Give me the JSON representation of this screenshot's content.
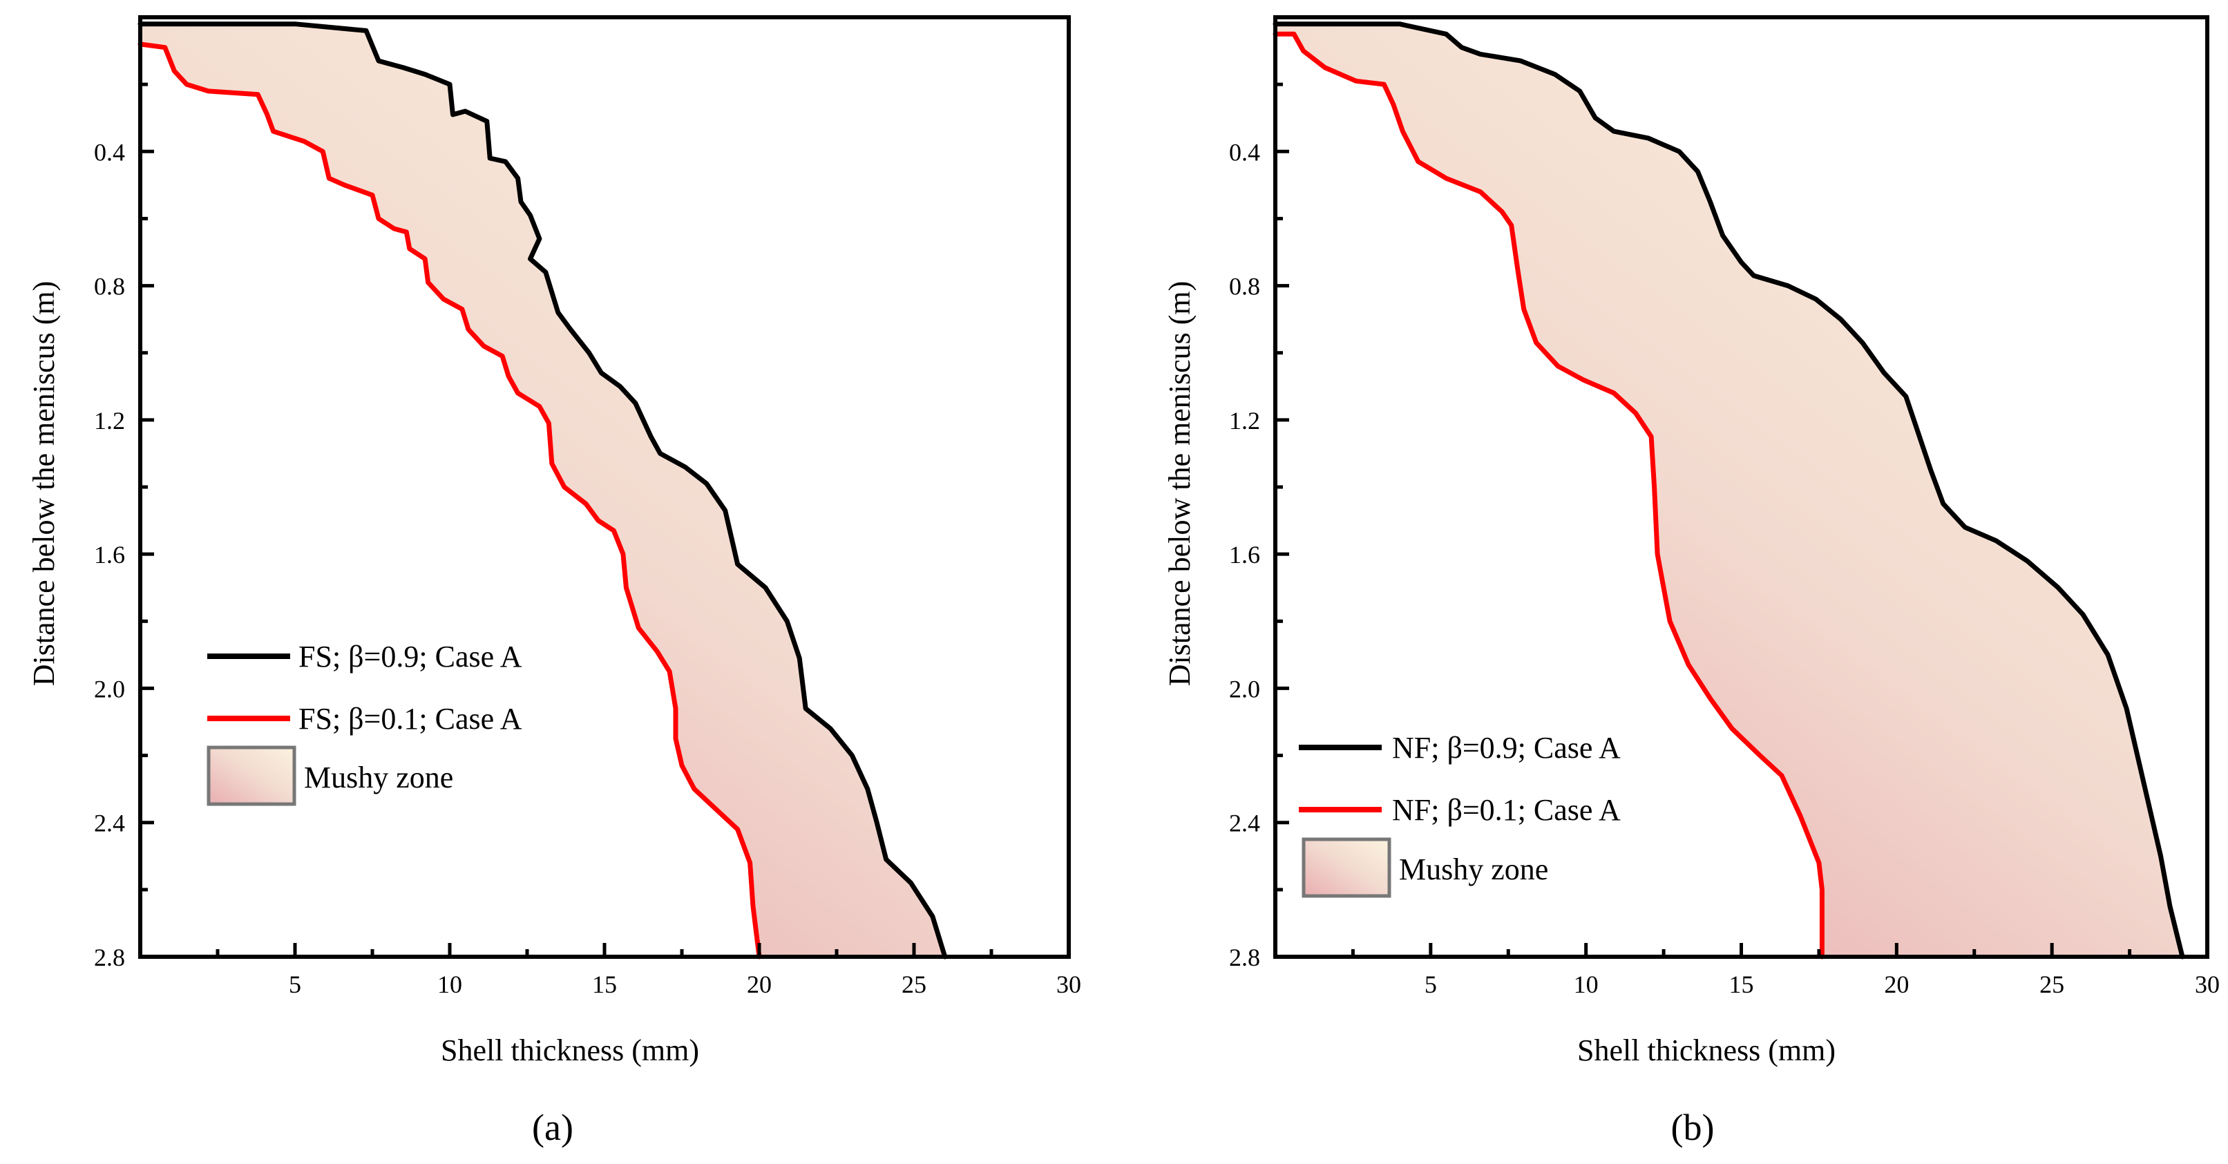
{
  "chart_data": [
    {
      "type": "area",
      "panel_label": "(a)",
      "xlabel": "Shell thickness (mm)",
      "ylabel": "Distance below the meniscus (m)",
      "xlim": [
        0,
        30
      ],
      "ylim": [
        0,
        2.8
      ],
      "y_inverted": true,
      "xticks": [
        5,
        10,
        15,
        20,
        25,
        30
      ],
      "yticks": [
        0.4,
        0.8,
        1.2,
        1.6,
        2.0,
        2.4,
        2.8
      ],
      "fill_gradient": [
        "#fbf3df",
        "#f2d9cf",
        "#e9aeb0"
      ],
      "legend_position": "lower-left",
      "series": [
        {
          "name": "FS; β=0.9; Case A",
          "color": "#000000",
          "points": [
            [
              0,
              0.02
            ],
            [
              5,
              0.02
            ],
            [
              7.3,
              0.04
            ],
            [
              7.7,
              0.13
            ],
            [
              8.5,
              0.15
            ],
            [
              9.2,
              0.17
            ],
            [
              10,
              0.2
            ],
            [
              10.1,
              0.29
            ],
            [
              10.5,
              0.28
            ],
            [
              11.2,
              0.31
            ],
            [
              11.3,
              0.42
            ],
            [
              11.8,
              0.43
            ],
            [
              12.2,
              0.48
            ],
            [
              12.3,
              0.55
            ],
            [
              12.6,
              0.59
            ],
            [
              12.9,
              0.66
            ],
            [
              12.6,
              0.72
            ],
            [
              13.1,
              0.76
            ],
            [
              13.5,
              0.88
            ],
            [
              13.9,
              0.93
            ],
            [
              14.5,
              1.0
            ],
            [
              14.9,
              1.06
            ],
            [
              15.5,
              1.1
            ],
            [
              16.0,
              1.15
            ],
            [
              16.5,
              1.25
            ],
            [
              16.8,
              1.3
            ],
            [
              17.6,
              1.34
            ],
            [
              18.3,
              1.39
            ],
            [
              18.9,
              1.47
            ],
            [
              19.1,
              1.55
            ],
            [
              19.3,
              1.63
            ],
            [
              20.2,
              1.7
            ],
            [
              20.9,
              1.8
            ],
            [
              21.3,
              1.91
            ],
            [
              21.5,
              2.06
            ],
            [
              22.3,
              2.12
            ],
            [
              23.0,
              2.2
            ],
            [
              23.5,
              2.3
            ],
            [
              23.8,
              2.4
            ],
            [
              24.1,
              2.51
            ],
            [
              24.9,
              2.58
            ],
            [
              25.6,
              2.68
            ],
            [
              26.0,
              2.8
            ]
          ]
        },
        {
          "name": "FS; β=0.1; Case A",
          "color": "#ff0000",
          "points": [
            [
              0,
              0.08
            ],
            [
              0.8,
              0.09
            ],
            [
              1.1,
              0.16
            ],
            [
              1.5,
              0.2
            ],
            [
              2.2,
              0.22
            ],
            [
              3.8,
              0.23
            ],
            [
              4.1,
              0.29
            ],
            [
              4.3,
              0.34
            ],
            [
              5.3,
              0.37
            ],
            [
              5.9,
              0.4
            ],
            [
              6.1,
              0.48
            ],
            [
              6.6,
              0.5
            ],
            [
              7.5,
              0.53
            ],
            [
              7.7,
              0.6
            ],
            [
              8.2,
              0.63
            ],
            [
              8.6,
              0.64
            ],
            [
              8.7,
              0.69
            ],
            [
              9.2,
              0.72
            ],
            [
              9.3,
              0.79
            ],
            [
              9.8,
              0.84
            ],
            [
              10.4,
              0.87
            ],
            [
              10.6,
              0.93
            ],
            [
              11.1,
              0.98
            ],
            [
              11.7,
              1.01
            ],
            [
              11.9,
              1.07
            ],
            [
              12.2,
              1.12
            ],
            [
              12.9,
              1.16
            ],
            [
              13.2,
              1.21
            ],
            [
              13.3,
              1.33
            ],
            [
              13.7,
              1.4
            ],
            [
              14.4,
              1.45
            ],
            [
              14.8,
              1.5
            ],
            [
              15.3,
              1.53
            ],
            [
              15.6,
              1.6
            ],
            [
              15.7,
              1.7
            ],
            [
              16.1,
              1.82
            ],
            [
              16.7,
              1.89
            ],
            [
              17.1,
              1.95
            ],
            [
              17.3,
              2.06
            ],
            [
              17.3,
              2.15
            ],
            [
              17.5,
              2.23
            ],
            [
              17.9,
              2.3
            ],
            [
              18.6,
              2.36
            ],
            [
              19.3,
              2.42
            ],
            [
              19.7,
              2.52
            ],
            [
              19.8,
              2.65
            ],
            [
              20.0,
              2.8
            ]
          ]
        }
      ],
      "legend": [
        {
          "label": "FS; β=0.9; Case A",
          "kind": "line",
          "color": "#000000"
        },
        {
          "label": "FS; β=0.1; Case A",
          "kind": "line",
          "color": "#ff0000"
        },
        {
          "label": "Mushy zone",
          "kind": "area"
        }
      ]
    },
    {
      "type": "area",
      "panel_label": "(b)",
      "xlabel": "Shell thickness (mm)",
      "ylabel": "Distance below the meniscus (m)",
      "xlim": [
        0,
        30
      ],
      "ylim": [
        0,
        2.8
      ],
      "y_inverted": true,
      "xticks": [
        5,
        10,
        15,
        20,
        25,
        30
      ],
      "yticks": [
        0.4,
        0.8,
        1.2,
        1.6,
        2.0,
        2.4,
        2.8
      ],
      "fill_gradient": [
        "#fbf3df",
        "#f2d9cf",
        "#e9aeb0"
      ],
      "legend_position": "lower-left",
      "series": [
        {
          "name": "NF; β=0.9; Case A",
          "color": "#000000",
          "points": [
            [
              0,
              0.02
            ],
            [
              4,
              0.02
            ],
            [
              5.5,
              0.05
            ],
            [
              6.0,
              0.09
            ],
            [
              6.6,
              0.11
            ],
            [
              7.9,
              0.13
            ],
            [
              9.0,
              0.17
            ],
            [
              9.8,
              0.22
            ],
            [
              10.3,
              0.3
            ],
            [
              10.9,
              0.34
            ],
            [
              12.0,
              0.36
            ],
            [
              13.0,
              0.4
            ],
            [
              13.6,
              0.46
            ],
            [
              14.0,
              0.55
            ],
            [
              14.4,
              0.65
            ],
            [
              15.0,
              0.73
            ],
            [
              15.4,
              0.77
            ],
            [
              16.5,
              0.8
            ],
            [
              17.4,
              0.84
            ],
            [
              18.2,
              0.9
            ],
            [
              18.9,
              0.97
            ],
            [
              19.6,
              1.06
            ],
            [
              20.3,
              1.13
            ],
            [
              20.7,
              1.24
            ],
            [
              21.1,
              1.35
            ],
            [
              21.5,
              1.45
            ],
            [
              22.2,
              1.52
            ],
            [
              23.2,
              1.56
            ],
            [
              24.2,
              1.62
            ],
            [
              25.2,
              1.7
            ],
            [
              26.0,
              1.78
            ],
            [
              26.8,
              1.9
            ],
            [
              27.4,
              2.06
            ],
            [
              27.9,
              2.26
            ],
            [
              28.5,
              2.5
            ],
            [
              28.8,
              2.65
            ],
            [
              29.2,
              2.8
            ]
          ]
        },
        {
          "name": "NF; β=0.1; Case A",
          "color": "#ff0000",
          "points": [
            [
              0,
              0.05
            ],
            [
              0.6,
              0.05
            ],
            [
              0.9,
              0.1
            ],
            [
              1.6,
              0.15
            ],
            [
              2.6,
              0.19
            ],
            [
              3.5,
              0.2
            ],
            [
              3.8,
              0.26
            ],
            [
              4.1,
              0.34
            ],
            [
              4.6,
              0.43
            ],
            [
              5.5,
              0.48
            ],
            [
              6.6,
              0.52
            ],
            [
              7.3,
              0.58
            ],
            [
              7.6,
              0.62
            ],
            [
              7.8,
              0.75
            ],
            [
              8.0,
              0.87
            ],
            [
              8.4,
              0.97
            ],
            [
              9.1,
              1.04
            ],
            [
              9.9,
              1.08
            ],
            [
              10.9,
              1.12
            ],
            [
              11.6,
              1.18
            ],
            [
              12.1,
              1.25
            ],
            [
              12.2,
              1.4
            ],
            [
              12.3,
              1.6
            ],
            [
              12.7,
              1.8
            ],
            [
              13.3,
              1.93
            ],
            [
              14.0,
              2.03
            ],
            [
              14.7,
              2.12
            ],
            [
              15.6,
              2.2
            ],
            [
              16.3,
              2.26
            ],
            [
              16.9,
              2.38
            ],
            [
              17.5,
              2.52
            ],
            [
              17.6,
              2.6
            ],
            [
              17.6,
              2.8
            ]
          ]
        }
      ],
      "legend": [
        {
          "label": "NF; β=0.9; Case A",
          "kind": "line",
          "color": "#000000"
        },
        {
          "label": "NF; β=0.1; Case A",
          "kind": "line",
          "color": "#ff0000"
        },
        {
          "label": "Mushy zone",
          "kind": "area"
        }
      ]
    }
  ]
}
